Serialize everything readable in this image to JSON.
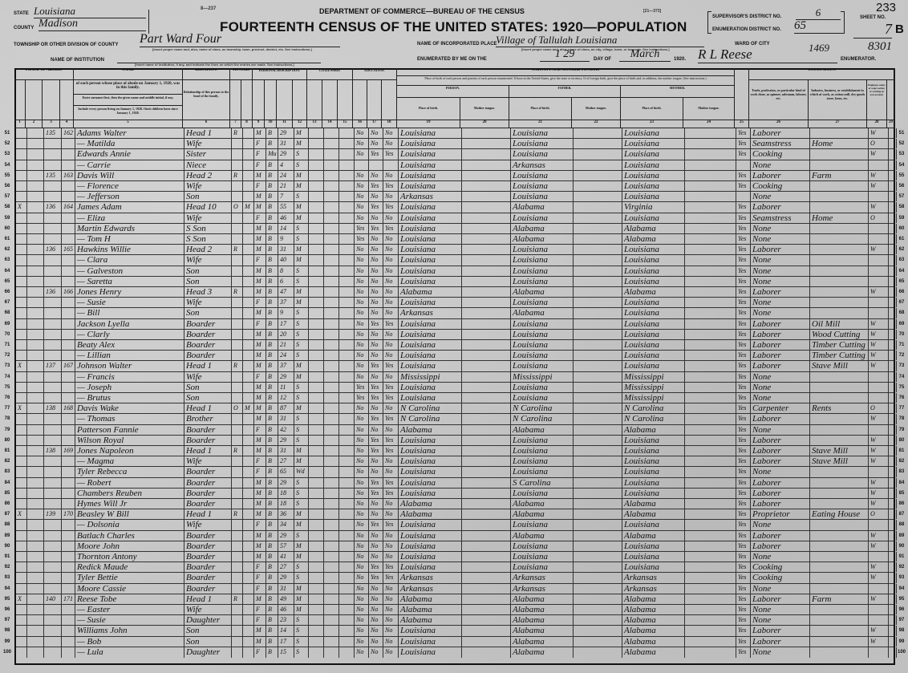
{
  "header": {
    "form_number": "8—237",
    "form_code": "[21—373]",
    "state_label": "STATE",
    "state_value": "Louisiana",
    "county_label": "COUNTY",
    "county_value": "Madison",
    "township_label": "TOWNSHIP OR OTHER DIVISION OF COUNTY",
    "township_value": "Part Ward Four",
    "township_note": "[Insert proper name and, also, name of class, as township, town, precinct, district, etc. See instructions.]",
    "institution_label": "NAME OF INSTITUTION",
    "institution_note": "[Insert name of institution, if any, and indicate the lines on which the entries are made. See instructions.]",
    "department": "DEPARTMENT OF COMMERCE—BUREAU OF THE CENSUS",
    "title": "FOURTEENTH CENSUS OF THE UNITED STATES: 1920—POPULATION",
    "incorporated_label": "NAME OF INCORPORATED PLACE",
    "incorporated_value": "Village of Tallulah Louisiana",
    "incorporated_note": "[Insert proper name and, also, name of class, as city, village, town, or borough. See instructions.]",
    "enumerated_label": "ENUMERATED BY ME ON THE",
    "enumerated_day": "1 29",
    "day_of_label": "DAY OF",
    "enumerated_month": "March",
    "year": "1920.",
    "enumerator_value": "R L Reese",
    "enumerator_label": "ENUMERATOR.",
    "ward_label": "WARD OF CITY",
    "ward_scribble_1": "1469",
    "ward_scribble_2": "8301",
    "supervisor_label": "SUPERVISOR'S DISTRICT NO.",
    "supervisor_value": "6",
    "enumeration_label": "ENUMERATION DISTRICT NO.",
    "enumeration_value": "65",
    "sheet_label": "SHEET NO.",
    "sheet_value": "7",
    "sheet_side": "B",
    "page_number": "233"
  },
  "columns": {
    "place_of_abode": "PLACE OF ABODE.",
    "name": "NAME",
    "name_desc_1": "of each person whose place of abode on January 1, 1920, was in this family.",
    "name_desc_2": "Enter surname first, then the given name and middle initial, if any.",
    "name_desc_3": "Include every person living on January 1, 1920. Omit children born since January 1, 1920.",
    "relation": "RELATION.",
    "relation_desc": "Relationship of this person to the head of the family.",
    "tenure": "TENURE.",
    "personal": "PERSONAL DESCRIPTION.",
    "citizenship": "CITIZENSHIP.",
    "education": "EDUCATION.",
    "nativity": "NATIVITY AND MOTHER TONGUE.",
    "nativity_desc": "Place of birth of each person and parents of each person enumerated. If born in the United States, give the state or territory. If of foreign birth, give the place of birth and, in addition, the mother tongue. (See instructions.)",
    "person": "PERSON.",
    "father": "FATHER.",
    "mother": "MOTHER.",
    "place_of_birth": "Place of birth.",
    "mother_tongue": "Mother tongue.",
    "occupation": "OCCUPATION.",
    "occupation_desc": "Trade, profession, or particular kind of work done, as spinner, salesman, laborer, etc.",
    "industry_desc": "Industry, business, or establishment in which at work, as cotton mill, dry-goods store, farm, etc.",
    "class_desc": "Employer, salary or wage worker, or working on own account.",
    "numbers": [
      "1",
      "2",
      "3",
      "4",
      "5",
      "6",
      "7",
      "8",
      "9",
      "10",
      "11",
      "12",
      "13",
      "14",
      "15",
      "16",
      "17",
      "18",
      "19",
      "20",
      "21",
      "22",
      "23",
      "24",
      "25",
      "26",
      "27",
      "28",
      "29"
    ]
  },
  "rows": [
    [
      "51",
      "",
      "135",
      "162",
      "Adams Walter",
      "Head 1",
      "R",
      "",
      "M",
      "B",
      "29",
      "M",
      "No",
      "No",
      "No",
      "Louisiana",
      "Louisiana",
      "Louisiana",
      "Yes",
      "Laborer",
      "",
      "W"
    ],
    [
      "52",
      "",
      "",
      "",
      "— Matilda",
      "Wife",
      "",
      "",
      "F",
      "B",
      "31",
      "M",
      "No",
      "No",
      "No",
      "Louisiana",
      "Louisiana",
      "Louisiana",
      "Yes",
      "Seamstress",
      "Home",
      "O"
    ],
    [
      "53",
      "",
      "",
      "",
      "Edwards Annie",
      "Sister",
      "",
      "",
      "F",
      "Mu",
      "29",
      "S",
      "No",
      "Yes",
      "Yes",
      "Louisiana",
      "Louisiana",
      "Louisiana",
      "Yes",
      "Cooking",
      "",
      "W"
    ],
    [
      "54",
      "",
      "",
      "",
      "— Carrie",
      "Niece",
      "",
      "",
      "F",
      "B",
      "4",
      "S",
      "",
      "",
      "",
      "Louisiana",
      "Arkansas",
      "Louisiana",
      "",
      "None",
      "",
      ""
    ],
    [
      "55",
      "",
      "135",
      "163",
      "Davis Will",
      "Head 2",
      "R",
      "",
      "M",
      "B",
      "24",
      "M",
      "No",
      "No",
      "No",
      "Louisiana",
      "Louisiana",
      "Louisiana",
      "Yes",
      "Laborer",
      "Farm",
      "W"
    ],
    [
      "56",
      "",
      "",
      "",
      "— Florence",
      "Wife",
      "",
      "",
      "F",
      "B",
      "21",
      "M",
      "No",
      "Yes",
      "Yes",
      "Louisiana",
      "Louisiana",
      "Louisiana",
      "Yes",
      "Cooking",
      "",
      "W"
    ],
    [
      "57",
      "",
      "",
      "",
      "— Jefferson",
      "Son",
      "",
      "",
      "M",
      "B",
      "7",
      "S",
      "No",
      "No",
      "No",
      "Arkansas",
      "Louisiana",
      "Louisiana",
      "",
      "None",
      "",
      ""
    ],
    [
      "58",
      "X",
      "136",
      "164",
      "James Adam",
      "Head 10",
      "O",
      "M",
      "M",
      "B",
      "55",
      "M",
      "No",
      "Yes",
      "Yes",
      "Louisiana",
      "Alabama",
      "Virginia",
      "Yes",
      "Laborer",
      "",
      "W"
    ],
    [
      "59",
      "",
      "",
      "",
      "— Eliza",
      "Wife",
      "",
      "",
      "F",
      "B",
      "46",
      "M",
      "No",
      "No",
      "No",
      "Louisiana",
      "Louisiana",
      "Louisiana",
      "Yes",
      "Seamstress",
      "Home",
      "O"
    ],
    [
      "60",
      "",
      "",
      "",
      "Martin Edwards",
      "S Son",
      "",
      "",
      "M",
      "B",
      "14",
      "S",
      "Yes",
      "Yes",
      "Yes",
      "Louisiana",
      "Alabama",
      "Alabama",
      "Yes",
      "None",
      "",
      ""
    ],
    [
      "61",
      "",
      "",
      "",
      "— Tom H",
      "S Son",
      "",
      "",
      "M",
      "B",
      "9",
      "S",
      "Yes",
      "No",
      "No",
      "Louisiana",
      "Alabama",
      "Alabama",
      "Yes",
      "None",
      "",
      ""
    ],
    [
      "62",
      "",
      "136",
      "165",
      "Hawkins Willie",
      "Head 2",
      "R",
      "",
      "M",
      "B",
      "31",
      "M",
      "No",
      "No",
      "No",
      "Louisiana",
      "Louisiana",
      "Louisiana",
      "Yes",
      "Laborer",
      "",
      "W"
    ],
    [
      "63",
      "",
      "",
      "",
      "— Clara",
      "Wife",
      "",
      "",
      "F",
      "B",
      "40",
      "M",
      "No",
      "No",
      "No",
      "Louisiana",
      "Louisiana",
      "Louisiana",
      "Yes",
      "None",
      "",
      ""
    ],
    [
      "64",
      "",
      "",
      "",
      "— Galveston",
      "Son",
      "",
      "",
      "M",
      "B",
      "8",
      "S",
      "No",
      "No",
      "No",
      "Louisiana",
      "Louisiana",
      "Louisiana",
      "Yes",
      "None",
      "",
      ""
    ],
    [
      "65",
      "",
      "",
      "",
      "— Saretta",
      "Son",
      "",
      "",
      "M",
      "B",
      "6",
      "S",
      "No",
      "No",
      "No",
      "Louisiana",
      "Louisiana",
      "Louisiana",
      "Yes",
      "None",
      "",
      ""
    ],
    [
      "66",
      "",
      "136",
      "166",
      "Jones Henry",
      "Head 3",
      "R",
      "",
      "M",
      "B",
      "47",
      "M",
      "No",
      "No",
      "No",
      "Alabama",
      "Alabama",
      "Alabama",
      "Yes",
      "Laborer",
      "",
      "W"
    ],
    [
      "67",
      "",
      "",
      "",
      "— Susie",
      "Wife",
      "",
      "",
      "F",
      "B",
      "37",
      "M",
      "No",
      "No",
      "No",
      "Louisiana",
      "Louisiana",
      "Louisiana",
      "Yes",
      "None",
      "",
      ""
    ],
    [
      "68",
      "",
      "",
      "",
      "— Bill",
      "Son",
      "",
      "",
      "M",
      "B",
      "9",
      "S",
      "No",
      "No",
      "No",
      "Arkansas",
      "Alabama",
      "Louisiana",
      "Yes",
      "None",
      "",
      ""
    ],
    [
      "69",
      "",
      "",
      "",
      "Jackson Lyella",
      "Boarder",
      "",
      "",
      "F",
      "B",
      "17",
      "S",
      "No",
      "Yes",
      "Yes",
      "Louisiana",
      "Louisiana",
      "Louisiana",
      "Yes",
      "Laborer",
      "Oil Mill",
      "W"
    ],
    [
      "70",
      "",
      "",
      "",
      "— Clarly",
      "Boarder",
      "",
      "",
      "M",
      "B",
      "20",
      "S",
      "No",
      "No",
      "No",
      "Louisiana",
      "Louisiana",
      "Louisiana",
      "Yes",
      "Laborer",
      "Wood Cutting",
      "W"
    ],
    [
      "71",
      "",
      "",
      "",
      "Beaty Alex",
      "Boarder",
      "",
      "",
      "M",
      "B",
      "21",
      "S",
      "No",
      "No",
      "No",
      "Louisiana",
      "Louisiana",
      "Louisiana",
      "Yes",
      "Laborer",
      "Timber Cutting",
      "W"
    ],
    [
      "72",
      "",
      "",
      "",
      "— Lillian",
      "Boarder",
      "",
      "",
      "M",
      "B",
      "24",
      "S",
      "No",
      "No",
      "No",
      "Louisiana",
      "Louisiana",
      "Louisiana",
      "Yes",
      "Laborer",
      "Timber Cutting",
      "W"
    ],
    [
      "73",
      "X",
      "137",
      "167",
      "Johnson Walter",
      "Head 1",
      "R",
      "",
      "M",
      "B",
      "37",
      "M",
      "No",
      "Yes",
      "Yes",
      "Louisiana",
      "Louisiana",
      "Louisiana",
      "Yes",
      "Laborer",
      "Stave Mill",
      "W"
    ],
    [
      "74",
      "",
      "",
      "",
      "— Francis",
      "Wife",
      "",
      "",
      "F",
      "B",
      "29",
      "M",
      "No",
      "No",
      "No",
      "Mississippi",
      "Mississippi",
      "Mississippi",
      "Yes",
      "None",
      "",
      ""
    ],
    [
      "75",
      "",
      "",
      "",
      "— Joseph",
      "Son",
      "",
      "",
      "M",
      "B",
      "11",
      "S",
      "Yes",
      "Yes",
      "Yes",
      "Louisiana",
      "Louisiana",
      "Mississippi",
      "Yes",
      "None",
      "",
      ""
    ],
    [
      "76",
      "",
      "",
      "",
      "— Brutus",
      "Son",
      "",
      "",
      "M",
      "B",
      "12",
      "S",
      "Yes",
      "Yes",
      "Yes",
      "Louisiana",
      "Louisiana",
      "Mississippi",
      "Yes",
      "None",
      "",
      ""
    ],
    [
      "77",
      "X",
      "138",
      "168",
      "Davis Wake",
      "Head 1",
      "O",
      "M",
      "M",
      "B",
      "87",
      "M",
      "No",
      "No",
      "No",
      "N Carolina",
      "N Carolina",
      "N Carolina",
      "Yes",
      "Carpenter",
      "Rents",
      "O"
    ],
    [
      "78",
      "",
      "",
      "",
      "— Thomas",
      "Brother",
      "",
      "",
      "M",
      "B",
      "31",
      "S",
      "No",
      "Yes",
      "Yes",
      "N Carolina",
      "N Carolina",
      "N Carolina",
      "Yes",
      "Laborer",
      "",
      "W"
    ],
    [
      "79",
      "",
      "",
      "",
      "Patterson Fannie",
      "Boarder",
      "",
      "",
      "F",
      "B",
      "42",
      "S",
      "No",
      "No",
      "No",
      "Alabama",
      "Alabama",
      "Alabama",
      "Yes",
      "None",
      "",
      ""
    ],
    [
      "80",
      "",
      "",
      "",
      "Wilson Royal",
      "Boarder",
      "",
      "",
      "M",
      "B",
      "29",
      "S",
      "No",
      "Yes",
      "Yes",
      "Louisiana",
      "Louisiana",
      "Louisiana",
      "Yes",
      "Laborer",
      "",
      "W"
    ],
    [
      "81",
      "",
      "138",
      "169",
      "Jones Napoleon",
      "Head 1",
      "R",
      "",
      "M",
      "B",
      "31",
      "M",
      "No",
      "Yes",
      "Yes",
      "Louisiana",
      "Louisiana",
      "Louisiana",
      "Yes",
      "Laborer",
      "Stave Mill",
      "W"
    ],
    [
      "82",
      "",
      "",
      "",
      "— Magma",
      "Wife",
      "",
      "",
      "F",
      "B",
      "27",
      "M",
      "No",
      "No",
      "No",
      "Louisiana",
      "Louisiana",
      "Louisiana",
      "Yes",
      "Laborer",
      "Stave Mill",
      "W"
    ],
    [
      "83",
      "",
      "",
      "",
      "Tyler Rebecca",
      "Boarder",
      "",
      "",
      "F",
      "B",
      "65",
      "Wd",
      "No",
      "No",
      "No",
      "Louisiana",
      "Louisiana",
      "Louisiana",
      "Yes",
      "None",
      "",
      ""
    ],
    [
      "84",
      "",
      "",
      "",
      "— Robert",
      "Boarder",
      "",
      "",
      "M",
      "B",
      "29",
      "S",
      "No",
      "Yes",
      "Yes",
      "Louisiana",
      "S Carolina",
      "Louisiana",
      "Yes",
      "Laborer",
      "",
      "W"
    ],
    [
      "85",
      "",
      "",
      "",
      "Chambers Reuben",
      "Boarder",
      "",
      "",
      "M",
      "B",
      "18",
      "S",
      "No",
      "Yes",
      "Yes",
      "Louisiana",
      "Louisiana",
      "Louisiana",
      "Yes",
      "Laborer",
      "",
      "W"
    ],
    [
      "86",
      "",
      "",
      "",
      "Hymes Will Jr",
      "Boarder",
      "",
      "",
      "M",
      "B",
      "18",
      "S",
      "No",
      "No",
      "No",
      "Alabama",
      "Alabama",
      "Alabama",
      "Yes",
      "Laborer",
      "",
      "W"
    ],
    [
      "87",
      "X",
      "139",
      "170",
      "Beasley W Bill",
      "Head 1",
      "R",
      "",
      "M",
      "B",
      "36",
      "M",
      "No",
      "No",
      "No",
      "Alabama",
      "Alabama",
      "Alabama",
      "Yes",
      "Proprietor",
      "Eating House",
      "O"
    ],
    [
      "88",
      "",
      "",
      "",
      "— Dolsonia",
      "Wife",
      "",
      "",
      "F",
      "B",
      "34",
      "M",
      "No",
      "Yes",
      "Yes",
      "Louisiana",
      "Louisiana",
      "Louisiana",
      "Yes",
      "None",
      "",
      ""
    ],
    [
      "89",
      "",
      "",
      "",
      "Batlach Charles",
      "Boarder",
      "",
      "",
      "M",
      "B",
      "29",
      "S",
      "No",
      "No",
      "No",
      "Louisiana",
      "Alabama",
      "Alabama",
      "Yes",
      "Laborer",
      "",
      "W"
    ],
    [
      "90",
      "",
      "",
      "",
      "Moore John",
      "Boarder",
      "",
      "",
      "M",
      "B",
      "57",
      "M",
      "No",
      "No",
      "No",
      "Louisiana",
      "Louisiana",
      "Louisiana",
      "Yes",
      "Laborer",
      "",
      "W"
    ],
    [
      "91",
      "",
      "",
      "",
      "Thornton Antony",
      "Boarder",
      "",
      "",
      "M",
      "B",
      "41",
      "M",
      "No",
      "No",
      "No",
      "Louisiana",
      "Louisiana",
      "Louisiana",
      "Yes",
      "None",
      "",
      ""
    ],
    [
      "92",
      "",
      "",
      "",
      "Redick Maude",
      "Boarder",
      "",
      "",
      "F",
      "B",
      "27",
      "S",
      "No",
      "Yes",
      "Yes",
      "Louisiana",
      "Louisiana",
      "Louisiana",
      "Yes",
      "Cooking",
      "",
      "W"
    ],
    [
      "93",
      "",
      "",
      "",
      "Tyler Bettie",
      "Boarder",
      "",
      "",
      "F",
      "B",
      "29",
      "S",
      "No",
      "Yes",
      "Yes",
      "Arkansas",
      "Arkansas",
      "Arkansas",
      "Yes",
      "Cooking",
      "",
      "W"
    ],
    [
      "94",
      "",
      "",
      "",
      "Moore Cassie",
      "Boarder",
      "",
      "",
      "F",
      "B",
      "31",
      "M",
      "No",
      "No",
      "No",
      "Arkansas",
      "Arkansas",
      "Arkansas",
      "Yes",
      "None",
      "",
      ""
    ],
    [
      "95",
      "X",
      "140",
      "171",
      "Reese Tobe",
      "Head 1",
      "R",
      "",
      "M",
      "B",
      "49",
      "M",
      "No",
      "No",
      "No",
      "Alabama",
      "Alabama",
      "Alabama",
      "Yes",
      "Laborer",
      "Farm",
      "W"
    ],
    [
      "96",
      "",
      "",
      "",
      "— Easter",
      "Wife",
      "",
      "",
      "F",
      "B",
      "46",
      "M",
      "No",
      "No",
      "No",
      "Alabama",
      "Alabama",
      "Alabama",
      "Yes",
      "None",
      "",
      ""
    ],
    [
      "97",
      "",
      "",
      "",
      "— Susie",
      "Daughter",
      "",
      "",
      "F",
      "B",
      "23",
      "S",
      "No",
      "No",
      "No",
      "Alabama",
      "Alabama",
      "Alabama",
      "Yes",
      "None",
      "",
      ""
    ],
    [
      "98",
      "",
      "",
      "",
      "Williams John",
      "Son",
      "",
      "",
      "M",
      "B",
      "14",
      "S",
      "No",
      "No",
      "No",
      "Louisiana",
      "Alabama",
      "Alabama",
      "Yes",
      "Laborer",
      "",
      "W"
    ],
    [
      "99",
      "",
      "",
      "",
      "— Bob",
      "Son",
      "",
      "",
      "M",
      "B",
      "17",
      "S",
      "No",
      "No",
      "No",
      "Louisiana",
      "Alabama",
      "Alabama",
      "Yes",
      "Laborer",
      "",
      "W"
    ],
    [
      "100",
      "",
      "",
      "",
      "— Lula",
      "Daughter",
      "",
      "",
      "F",
      "B",
      "15",
      "S",
      "No",
      "No",
      "No",
      "Louisiana",
      "Alabama",
      "Alabama",
      "Yes",
      "None",
      "",
      ""
    ]
  ]
}
